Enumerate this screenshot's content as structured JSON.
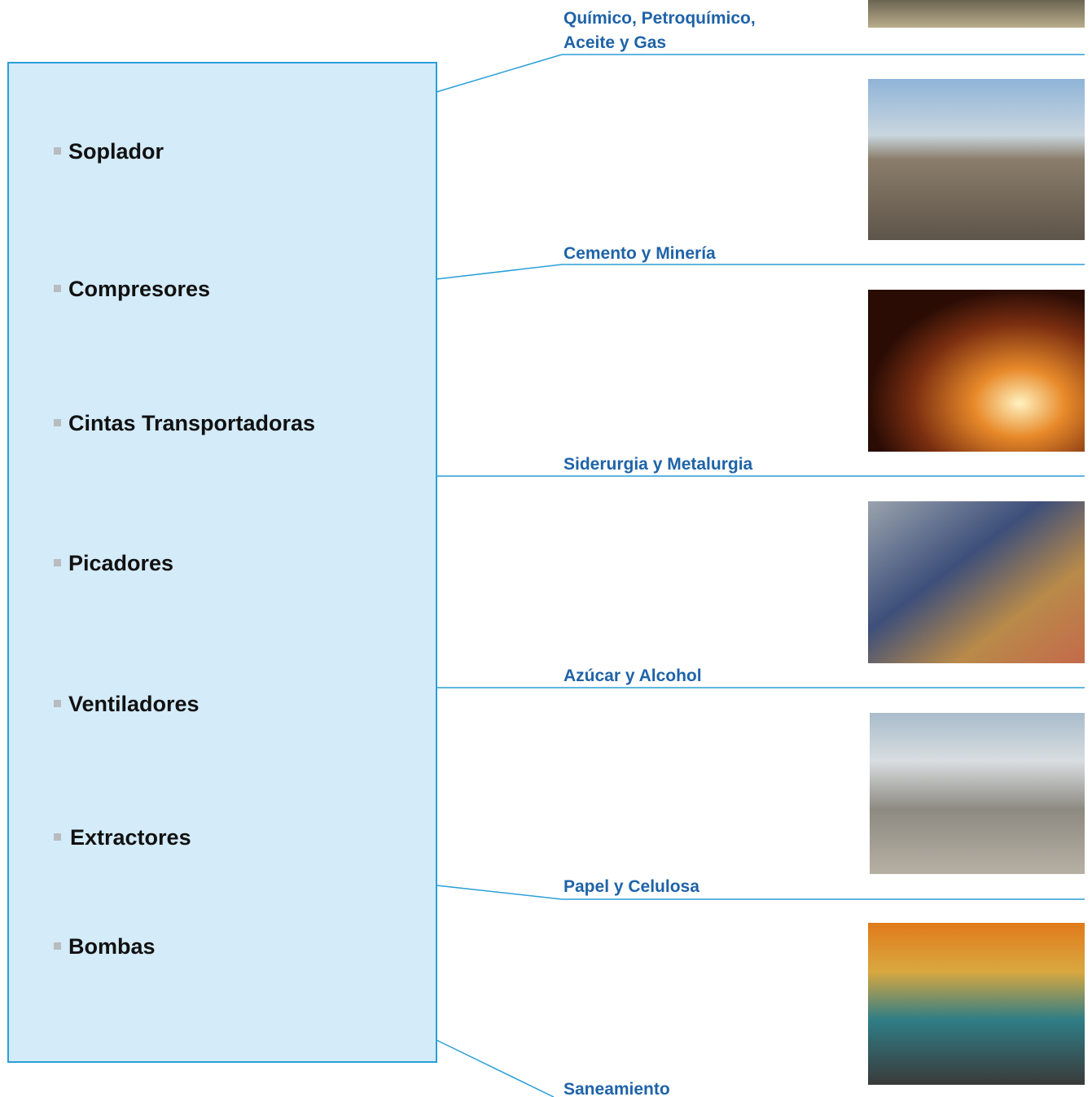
{
  "applications": [
    "Soplador",
    "Compresores",
    "Cintas Transportadoras",
    "Picadores",
    "Ventiladores",
    "Extractores",
    "Bombas"
  ],
  "industries": [
    {
      "label": "Químico, Petroquímico,"
    },
    {
      "label": "Aceite y Gas"
    },
    {
      "label": "Cemento y Minería"
    },
    {
      "label": "Siderurgia y Metalurgia"
    },
    {
      "label": "Azúcar y Alcohol"
    },
    {
      "label": "Papel y Celulosa"
    },
    {
      "label": "Saneamiento"
    }
  ]
}
